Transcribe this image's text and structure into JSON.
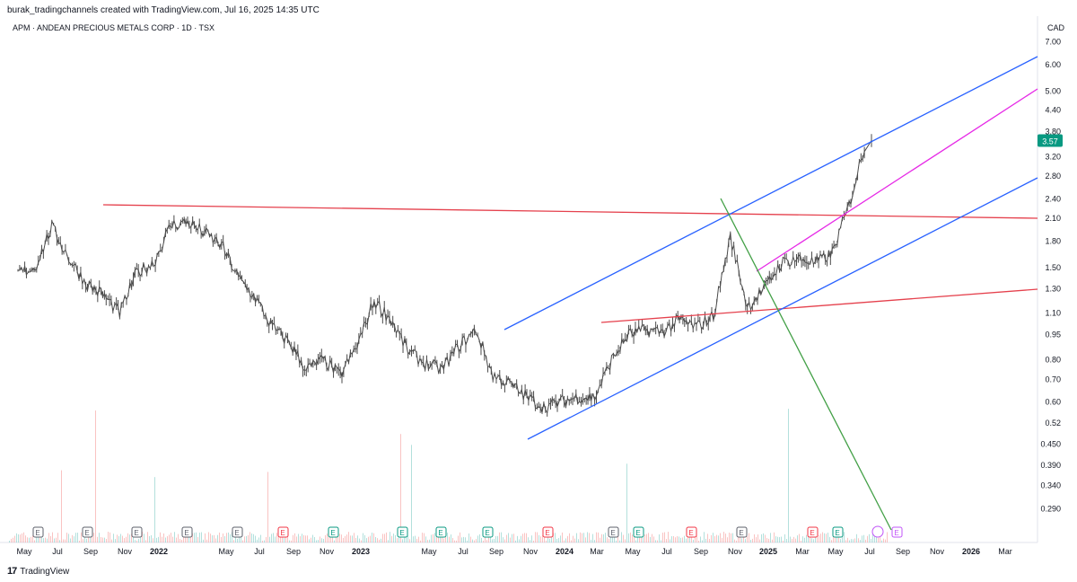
{
  "header": {
    "credit": "burak_tradingchannels created with TradingView.com, Jul 16, 2025 14:35 UTC",
    "symbol_line": "APM · ANDEAN PRECIOUS METALS CORP · 1D · TSX",
    "currency": "CAD"
  },
  "footer": {
    "brand": "TradingView",
    "logo_glyph": "17"
  },
  "colors": {
    "price": "#4a4a4a",
    "red_line": "#e5414d",
    "blue_line": "#2962ff",
    "magenta_line": "#e62ae6",
    "green_line": "#43a047",
    "last_price_bg": "#089981"
  },
  "chart_data": {
    "type": "line",
    "log_scale": true,
    "series": [
      {
        "x": [
          "2021-05",
          "2021-06",
          "2021-07",
          "2021-08",
          "2021-09",
          "2021-10",
          "2021-11",
          "2021-12",
          "2022-01",
          "2022-02",
          "2022-03",
          "2022-04",
          "2022-05",
          "2022-06",
          "2022-07",
          "2022-08",
          "2022-09",
          "2022-10",
          "2022-11",
          "2022-12",
          "2023-01",
          "2023-02",
          "2023-03",
          "2023-04",
          "2023-05",
          "2023-06",
          "2023-07",
          "2023-08",
          "2023-09",
          "2023-10",
          "2023-11",
          "2023-12",
          "2024-01",
          "2024-02",
          "2024-03",
          "2024-04",
          "2024-05",
          "2024-06",
          "2024-07",
          "2024-08",
          "2024-09",
          "2024-10",
          "2024-11",
          "2024-12",
          "2025-01",
          "2025-02",
          "2025-03",
          "2025-04",
          "2025-05",
          "2025-06",
          "2025-07"
        ],
        "values": [
          1.45,
          1.5,
          1.98,
          1.6,
          1.35,
          1.25,
          1.1,
          1.45,
          1.55,
          2.0,
          2.05,
          1.9,
          1.75,
          1.4,
          1.22,
          1.0,
          0.9,
          0.75,
          0.8,
          0.72,
          0.88,
          1.2,
          1.05,
          0.85,
          0.78,
          0.75,
          0.88,
          0.98,
          0.72,
          0.68,
          0.62,
          0.58,
          0.6,
          0.62,
          0.62,
          0.8,
          0.95,
          0.98,
          0.97,
          1.05,
          1.0,
          1.08,
          1.85,
          1.15,
          1.3,
          1.55,
          1.6,
          1.55,
          1.65,
          2.3,
          3.57
        ]
      }
    ],
    "volume_markers": [
      "E",
      "E",
      "E",
      "E",
      "E",
      "E",
      "E",
      "E",
      "E",
      "E",
      "E",
      "E",
      "E",
      "E",
      "E",
      "E",
      "E",
      "E",
      "E"
    ],
    "y_ticks": [
      "7.00",
      "6.00",
      "5.00",
      "4.40",
      "3.80",
      "3.20",
      "2.80",
      "2.40",
      "2.10",
      "1.80",
      "1.50",
      "1.30",
      "1.10",
      "0.95",
      "0.80",
      "0.70",
      "0.60",
      "0.52",
      "0.450",
      "0.390",
      "0.340",
      "0.290"
    ],
    "x_ticks": [
      "May",
      "Jul",
      "Sep",
      "Nov",
      "2022",
      "May",
      "Jul",
      "Sep",
      "Nov",
      "2023",
      "May",
      "Jul",
      "Sep",
      "Nov",
      "2024",
      "Mar",
      "May",
      "Jul",
      "Sep",
      "Nov",
      "2025",
      "Mar",
      "May",
      "Jul",
      "Sep",
      "Nov",
      "2026",
      "Mar"
    ],
    "last_price": "3.57",
    "ylim": [
      0.27,
      7.2
    ]
  }
}
